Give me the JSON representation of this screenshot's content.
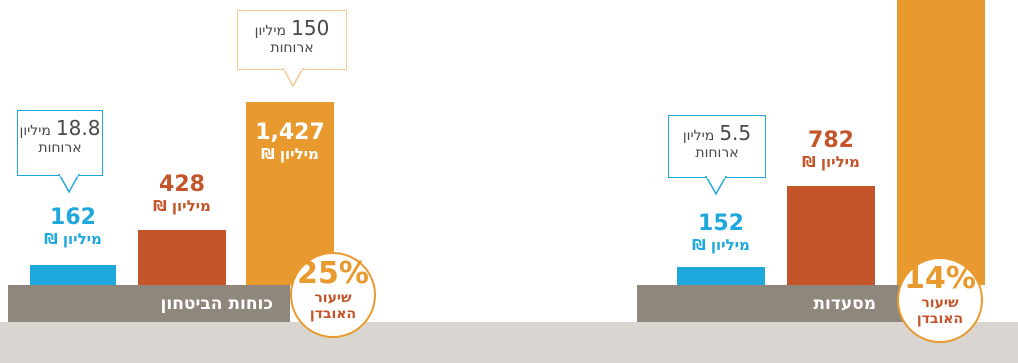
{
  "colors": {
    "light_blue": "#1fa8dc",
    "dark_orange": "#c4552a",
    "orange": "#e89a2e",
    "base": "#8f867c",
    "floor": "#d9d6d2"
  },
  "chart_data": [
    {
      "type": "bar",
      "category": "כוחות הביטחון",
      "loss_rate": "25%",
      "loss_caption": [
        "שיעור",
        "האובדן"
      ],
      "values": [
        162,
        428,
        1427
      ],
      "value_labels": [
        "162",
        "428",
        "1,427"
      ],
      "unit": "מיליון ₪",
      "callouts": [
        {
          "bar": 0,
          "number": "18.8",
          "word": "מיליון",
          "second_line": "ארוחות"
        },
        {
          "bar": 2,
          "number": "150",
          "word": "מיליון",
          "second_line": "ארוחות"
        }
      ]
    },
    {
      "type": "bar",
      "category": "מסעדות",
      "loss_rate": "14%",
      "loss_caption": [
        "שיעור",
        "האובדן"
      ],
      "values": [
        152,
        782,
        null
      ],
      "value_labels": [
        "152",
        "782",
        null
      ],
      "unit": "מיליון ₪",
      "callouts": [
        {
          "bar": 0,
          "number": "5.5",
          "word": "מיליון",
          "second_line": "ארוחות"
        }
      ]
    }
  ]
}
